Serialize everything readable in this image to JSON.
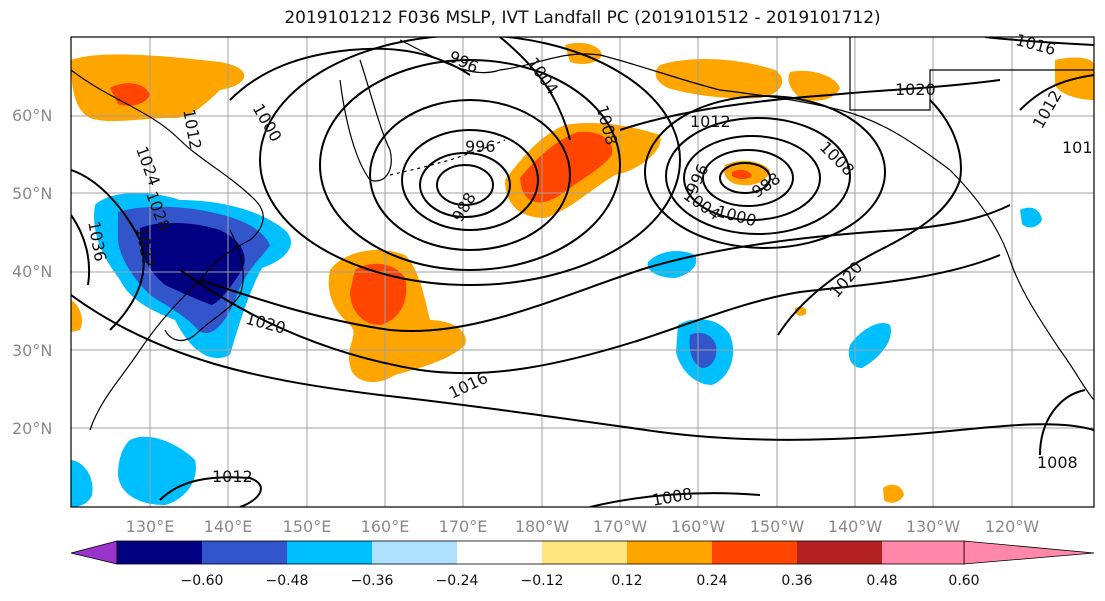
{
  "title": "2019101212 F036 MSLP, IVT Landfall PC (2019101512 - 2019101712)",
  "map": {
    "lat_labels": [
      "60°N",
      "50°N",
      "40°N",
      "30°N",
      "20°N"
    ],
    "lon_labels": [
      "130°E",
      "140°E",
      "150°E",
      "160°E",
      "170°E",
      "180°W",
      "170°W",
      "160°W",
      "150°W",
      "140°W",
      "130°W",
      "120°W"
    ],
    "isobar_labels": [
      {
        "text": "996"
      },
      {
        "text": "1004"
      },
      {
        "text": "1008"
      },
      {
        "text": "1012"
      },
      {
        "text": "1016"
      },
      {
        "text": "1020"
      },
      {
        "text": "1012"
      },
      {
        "text": "1000"
      },
      {
        "text": "1012"
      },
      {
        "text": "1024"
      },
      {
        "text": "1028"
      },
      {
        "text": "1036"
      },
      {
        "text": "1032"
      },
      {
        "text": "996"
      },
      {
        "text": "988"
      },
      {
        "text": "996"
      },
      {
        "text": "988"
      },
      {
        "text": "1008"
      },
      {
        "text": "1004"
      },
      {
        "text": "1000"
      },
      {
        "text": "1020"
      },
      {
        "text": "1020"
      },
      {
        "text": "1016"
      },
      {
        "text": "1012"
      },
      {
        "text": "1008"
      },
      {
        "text": "1008"
      },
      {
        "text": "101"
      }
    ]
  },
  "colorbar": {
    "tick_labels": [
      "−0.60",
      "−0.48",
      "−0.36",
      "−0.24",
      "−0.12",
      "0.12",
      "0.24",
      "0.36",
      "0.48",
      "0.60"
    ],
    "colors": [
      "#9933cc",
      "#000080",
      "#3355cc",
      "#00bfff",
      "#b0e0ff",
      "#ffffff",
      "#ffe680",
      "#ffa500",
      "#ff4500",
      "#b22222",
      "#ff88aa"
    ]
  },
  "colors": {
    "isobar": "#000000",
    "grid": "#a0a0a0",
    "coast": "#000000"
  }
}
